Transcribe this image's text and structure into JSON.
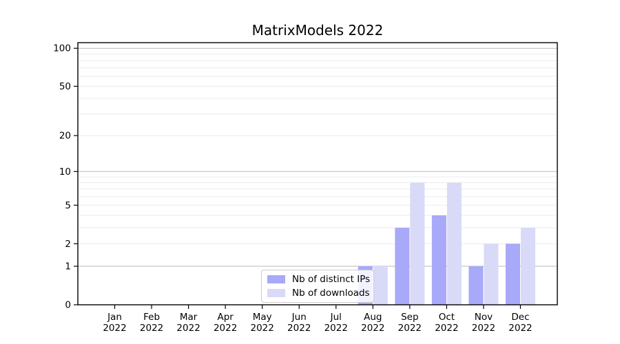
{
  "chart_data": {
    "type": "bar",
    "title": "MatrixModels 2022",
    "categories": [
      "Jan",
      "Feb",
      "Mar",
      "Apr",
      "May",
      "Jun",
      "Jul",
      "Aug",
      "Sep",
      "Oct",
      "Nov",
      "Dec"
    ],
    "x_year": "2022",
    "series": [
      {
        "name": "Nb of distinct IPs",
        "color": "#a8a9f8",
        "values": [
          0,
          0,
          0,
          0,
          0,
          0,
          0,
          1,
          3,
          4,
          1,
          2
        ]
      },
      {
        "name": "Nb of downloads",
        "color": "#d9daf8",
        "values": [
          0,
          0,
          0,
          0,
          0,
          0,
          0,
          1,
          8,
          8,
          2,
          3
        ]
      }
    ],
    "xlabel": "",
    "ylabel": "",
    "y_axis": {
      "scale": "log10(1+v)",
      "ticks": [
        0,
        1,
        2,
        5,
        10,
        20,
        50,
        100
      ],
      "major_gridlines": [
        1,
        10,
        100
      ],
      "minor_gridlines": [
        2,
        3,
        4,
        5,
        6,
        7,
        8,
        9,
        20,
        30,
        40,
        50,
        60,
        70,
        80,
        90
      ],
      "ylim": [
        0,
        111
      ]
    },
    "grid": true,
    "legend_position": "lower center"
  },
  "colors": {
    "bar_ips": "#a8a9f8",
    "bar_downloads": "#d9daf8",
    "grid_minor": "#ebebeb",
    "grid_major": "#b8b8b8",
    "spine": "#000000",
    "tick_text": "#000000",
    "background": "#ffffff",
    "legend_border": "#cccccc"
  }
}
